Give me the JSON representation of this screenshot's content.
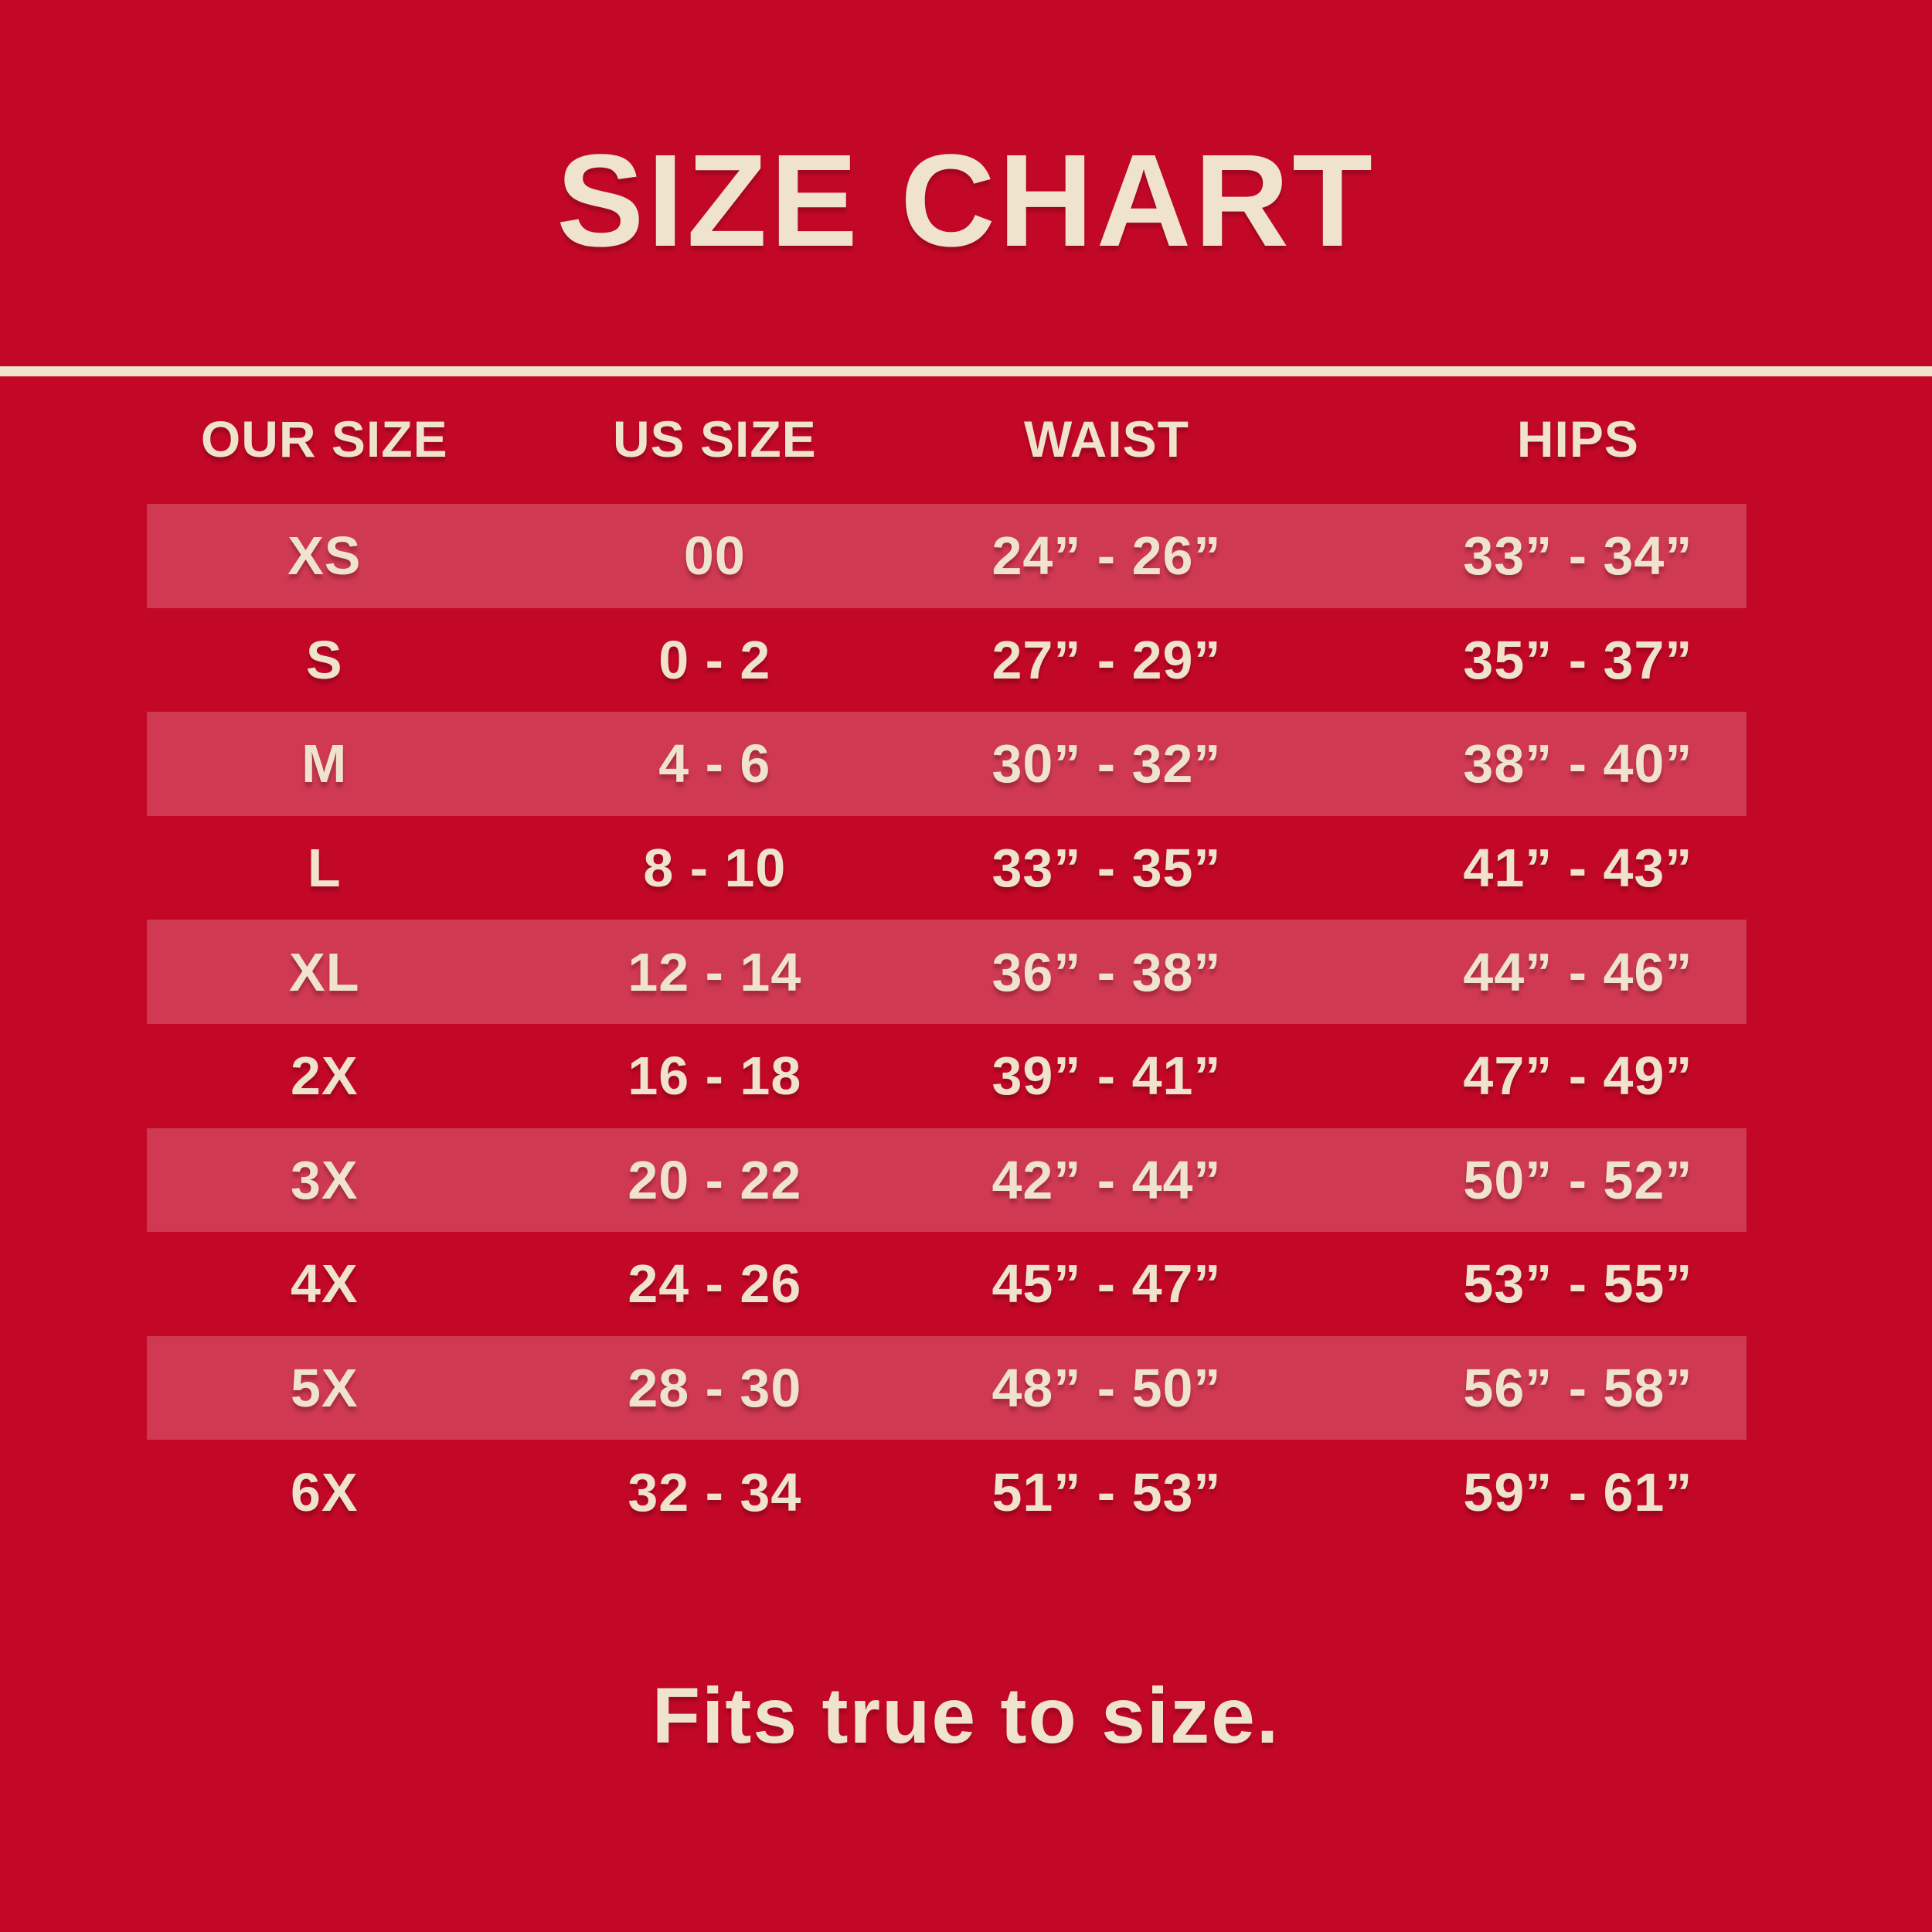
{
  "title": "SIZE CHART",
  "footer_note": "Fits true to size.",
  "colors": {
    "background": "#c30827",
    "stripe": "#cf3952",
    "text": "#f0e3cd"
  },
  "table": {
    "headers": [
      "OUR SIZE",
      "US SIZE",
      "WAIST",
      "HIPS"
    ],
    "rows": [
      {
        "our_size": "XS",
        "us_size": "00",
        "waist": "24” - 26”",
        "hips": "33” - 34”"
      },
      {
        "our_size": "S",
        "us_size": "0 - 2",
        "waist": "27” - 29”",
        "hips": "35” - 37”"
      },
      {
        "our_size": "M",
        "us_size": "4 - 6",
        "waist": "30” - 32”",
        "hips": "38” - 40”"
      },
      {
        "our_size": "L",
        "us_size": "8 - 10",
        "waist": "33” - 35”",
        "hips": "41” - 43”"
      },
      {
        "our_size": "XL",
        "us_size": "12 - 14",
        "waist": "36” - 38”",
        "hips": "44” - 46”"
      },
      {
        "our_size": "2X",
        "us_size": "16 - 18",
        "waist": "39” - 41”",
        "hips": "47” - 49”"
      },
      {
        "our_size": "3X",
        "us_size": "20 - 22",
        "waist": "42” - 44”",
        "hips": "50” - 52”"
      },
      {
        "our_size": "4X",
        "us_size": "24 - 26",
        "waist": "45” - 47”",
        "hips": "53” - 55”"
      },
      {
        "our_size": "5X",
        "us_size": "28 - 30",
        "waist": "48” - 50”",
        "hips": "56” - 58”"
      },
      {
        "our_size": "6X",
        "us_size": "32 - 34",
        "waist": "51” - 53”",
        "hips": "59” - 61”"
      }
    ]
  },
  "chart_data": {
    "type": "table",
    "title": "SIZE CHART",
    "columns": [
      "OUR SIZE",
      "US SIZE",
      "WAIST",
      "HIPS"
    ],
    "rows": [
      [
        "XS",
        "00",
        "24” - 26”",
        "33” - 34”"
      ],
      [
        "S",
        "0 - 2",
        "27” - 29”",
        "35” - 37”"
      ],
      [
        "M",
        "4 - 6",
        "30” - 32”",
        "38” - 40”"
      ],
      [
        "L",
        "8 - 10",
        "33” - 35”",
        "41” - 43”"
      ],
      [
        "XL",
        "12 - 14",
        "36” - 38”",
        "44” - 46”"
      ],
      [
        "2X",
        "16 - 18",
        "39” - 41”",
        "47” - 49”"
      ],
      [
        "3X",
        "20 - 22",
        "42” - 44”",
        "50” - 52”"
      ],
      [
        "4X",
        "24 - 26",
        "45” - 47”",
        "53” - 55”"
      ],
      [
        "5X",
        "28 - 30",
        "48” - 50”",
        "56” - 58”"
      ],
      [
        "6X",
        "32 - 34",
        "51” - 53”",
        "59” - 61”"
      ]
    ],
    "annotations": [
      "Fits true to size."
    ],
    "layout": {
      "striped_rows": "odd rows (1st, 3rd, 5th, 7th, 9th) highlighted",
      "background": "#c30827",
      "stripe_color": "#cf3952",
      "text_color": "#f0e3cd",
      "divider_under_title": true
    }
  }
}
